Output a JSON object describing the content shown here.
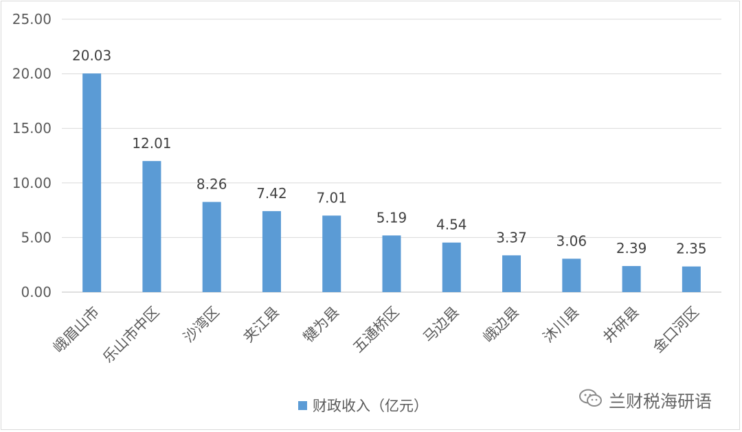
{
  "chart_data": {
    "type": "bar",
    "categories": [
      "峨眉山市",
      "乐山市中区",
      "沙湾区",
      "夹江县",
      "犍为县",
      "五通桥区",
      "马边县",
      "峨边县",
      "沐川县",
      "井研县",
      "金口河区"
    ],
    "series": [
      {
        "name": "财政收入（亿元）",
        "values": [
          20.03,
          12.01,
          8.26,
          7.42,
          7.01,
          5.19,
          4.54,
          3.37,
          3.06,
          2.39,
          2.35
        ],
        "color": "#5b9bd5"
      }
    ],
    "yticks": [
      "0.00",
      "5.00",
      "10.00",
      "15.00",
      "20.00",
      "25.00"
    ],
    "ylim": [
      0,
      25
    ],
    "grid": true,
    "legend_position": "bottom"
  },
  "watermark": {
    "icon": "wechat-icon",
    "text": "兰财税海研语"
  }
}
